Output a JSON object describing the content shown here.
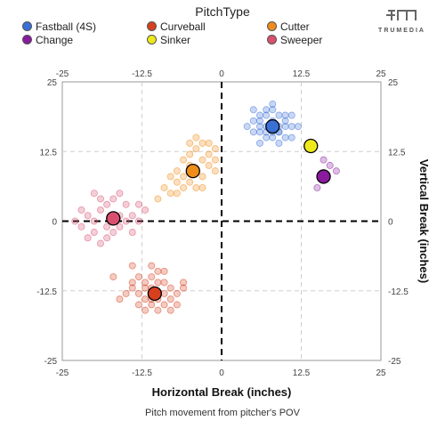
{
  "legend": {
    "title": "PitchType",
    "items": [
      {
        "label": "Fastball (4S)",
        "color": "#3a6fd6"
      },
      {
        "label": "Curveball",
        "color": "#d6401f"
      },
      {
        "label": "Cutter",
        "color": "#f08c1a"
      },
      {
        "label": "Change",
        "color": "#8a1a9e"
      },
      {
        "label": "Sinker",
        "color": "#eeea1a"
      },
      {
        "label": "Sweeper",
        "color": "#d9506f"
      }
    ]
  },
  "brand": {
    "name": "TRUMEDIA",
    "icon": "trumedia-logo-icon"
  },
  "caption": "Pitch movement from pitcher's POV",
  "chart_data": {
    "type": "scatter",
    "xlabel": "Horizontal Break (inches)",
    "ylabel": "Vertical Break (inches)",
    "xlim": [
      -25,
      25
    ],
    "ylim": [
      -25,
      25
    ],
    "xticks": [
      "-25",
      "-12.5",
      "0",
      "12.5",
      "25"
    ],
    "yticks": [
      "25",
      "12.5",
      "0",
      "-12.5",
      "-25"
    ],
    "grid": "dashed",
    "legend_position": "top",
    "series": [
      {
        "name": "Fastball (4S)",
        "color": "#3a6fd6",
        "mean": [
          8,
          17
        ],
        "points": [
          [
            5,
            18
          ],
          [
            6,
            19
          ],
          [
            7,
            17
          ],
          [
            8,
            18
          ],
          [
            9,
            16
          ],
          [
            10,
            17
          ],
          [
            6,
            16
          ],
          [
            7,
            15
          ],
          [
            9,
            19
          ],
          [
            8,
            20
          ],
          [
            10,
            15
          ],
          [
            11,
            17
          ],
          [
            5,
            16
          ],
          [
            6,
            14
          ],
          [
            8,
            15
          ],
          [
            9,
            17
          ],
          [
            7,
            19
          ],
          [
            11,
            19
          ],
          [
            4,
            17
          ],
          [
            6,
            18
          ],
          [
            8,
            16
          ],
          [
            10,
            19
          ],
          [
            7,
            16
          ],
          [
            9,
            14
          ],
          [
            12,
            17
          ],
          [
            5,
            20
          ],
          [
            8,
            21
          ],
          [
            6,
            17
          ],
          [
            10,
            18
          ],
          [
            7,
            20
          ],
          [
            9,
            16
          ],
          [
            11,
            15
          ]
        ]
      },
      {
        "name": "Curveball",
        "color": "#d6401f",
        "mean": [
          -10.5,
          -13
        ],
        "points": [
          [
            -12,
            -11
          ],
          [
            -11,
            -12
          ],
          [
            -10,
            -14
          ],
          [
            -9,
            -13
          ],
          [
            -13,
            -13
          ],
          [
            -8,
            -12
          ],
          [
            -11,
            -15
          ],
          [
            -12,
            -14
          ],
          [
            -10,
            -11
          ],
          [
            -9,
            -15
          ],
          [
            -14,
            -12
          ],
          [
            -7,
            -13
          ],
          [
            -11,
            -10
          ],
          [
            -13,
            -15
          ],
          [
            -10,
            -16
          ],
          [
            -8,
            -14
          ],
          [
            -12,
            -12
          ],
          [
            -15,
            -13
          ],
          [
            -9,
            -11
          ],
          [
            -6,
            -12
          ],
          [
            -11,
            -14
          ],
          [
            -14,
            -11
          ],
          [
            -10,
            -13
          ],
          [
            -8,
            -16
          ],
          [
            -12,
            -16
          ],
          [
            -7,
            -15
          ],
          [
            -16,
            -14
          ],
          [
            -13,
            -10
          ],
          [
            -9,
            -9
          ],
          [
            -11,
            -8
          ],
          [
            -14,
            -8
          ],
          [
            -17,
            -10
          ],
          [
            -6,
            -11
          ],
          [
            -10,
            -9
          ]
        ]
      },
      {
        "name": "Cutter",
        "color": "#f08c1a",
        "mean": [
          -4.5,
          9
        ],
        "points": [
          [
            -6,
            8
          ],
          [
            -5,
            10
          ],
          [
            -4,
            9
          ],
          [
            -3,
            11
          ],
          [
            -7,
            7
          ],
          [
            -5,
            12
          ],
          [
            -4,
            13
          ],
          [
            -2,
            12
          ],
          [
            -6,
            6
          ],
          [
            -3,
            8
          ],
          [
            -8,
            5
          ],
          [
            -1,
            13
          ],
          [
            -2,
            10
          ],
          [
            -7,
            9
          ],
          [
            -5,
            7
          ],
          [
            -4,
            6
          ],
          [
            -3,
            14
          ],
          [
            -1,
            11
          ],
          [
            -6,
            11
          ],
          [
            -8,
            8
          ],
          [
            -9,
            6
          ],
          [
            -2,
            14
          ],
          [
            -5,
            14
          ],
          [
            -10,
            4
          ],
          [
            -4,
            15
          ],
          [
            -7,
            5
          ],
          [
            -1,
            9
          ],
          [
            -3,
            6
          ]
        ]
      },
      {
        "name": "Change",
        "color": "#8a1a9e",
        "mean": [
          16,
          8
        ],
        "points": [
          [
            17,
            10
          ],
          [
            15,
            6
          ],
          [
            16,
            11
          ],
          [
            18,
            9
          ]
        ]
      },
      {
        "name": "Sinker",
        "color": "#eeea1a",
        "mean": [
          14,
          13.5
        ],
        "points": []
      },
      {
        "name": "Sweeper",
        "color": "#d9506f",
        "mean": [
          -17,
          0.5
        ],
        "points": [
          [
            -20,
            0
          ],
          [
            -19,
            2
          ],
          [
            -18,
            -1
          ],
          [
            -16,
            1
          ],
          [
            -15,
            0
          ],
          [
            -21,
            1
          ],
          [
            -22,
            -1
          ],
          [
            -18,
            3
          ],
          [
            -17,
            -2
          ],
          [
            -14,
            1
          ],
          [
            -20,
            -2
          ],
          [
            -19,
            -4
          ],
          [
            -16,
            -1
          ],
          [
            -13,
            0
          ],
          [
            -21,
            -3
          ],
          [
            -23,
            0
          ],
          [
            -18,
            -3
          ],
          [
            -15,
            3
          ],
          [
            -17,
            4
          ],
          [
            -12,
            2
          ],
          [
            -19,
            4
          ],
          [
            -22,
            2
          ],
          [
            -14,
            -2
          ],
          [
            -16,
            5
          ],
          [
            -13,
            3
          ],
          [
            -20,
            5
          ]
        ]
      }
    ]
  }
}
